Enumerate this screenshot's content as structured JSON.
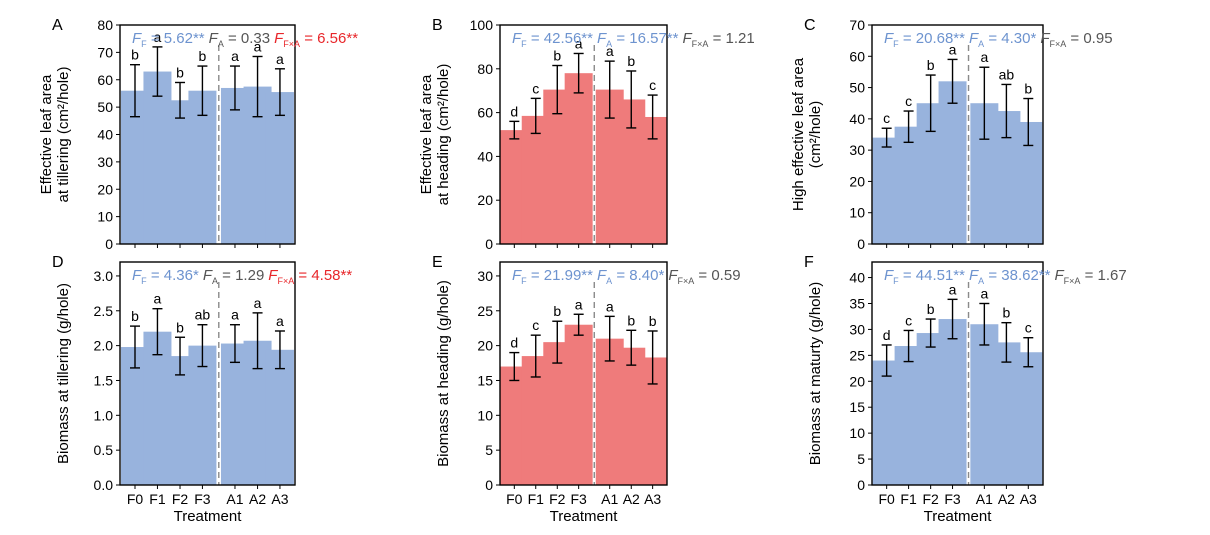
{
  "figure": {
    "xlabel": "Treatment",
    "colors": {
      "blue": "#98b3dd",
      "red": "#ef7b7b",
      "stat_blue": "#6d93cf",
      "stat_red": "#e8262a",
      "stat_gray": "#555555",
      "axis": "#000000",
      "divider": "#8a8a8a"
    }
  },
  "chart_data": [
    {
      "panel": "A",
      "type": "bar",
      "bar_color": "blue",
      "categories": [
        "F0",
        "F1",
        "F2",
        "F3",
        "A1",
        "A2",
        "A3"
      ],
      "values": [
        56,
        63,
        52.5,
        56,
        57,
        57.5,
        55.5
      ],
      "error": [
        9.5,
        9,
        6.5,
        9,
        8,
        11,
        8.5
      ],
      "letters": [
        "b",
        "a",
        "b",
        "b",
        "a",
        "a",
        "a"
      ],
      "ylabel_lines": [
        "Effective leaf area",
        "at tillering (cm²/hole)"
      ],
      "ylim": [
        0,
        80
      ],
      "yticks": [
        "0",
        "10",
        "20",
        "30",
        "40",
        "50",
        "60",
        "70",
        "80"
      ],
      "show_xticklabels": false,
      "show_xlabel": false,
      "stats": [
        {
          "sym": "F",
          "sub": "F",
          "val": " = 5.62**",
          "color": "stat_blue"
        },
        {
          "sym": "F",
          "sub": "A",
          "val": " = 0.33",
          "color": "stat_gray"
        },
        {
          "sym": "F",
          "sub": "F×A",
          "val": " = 6.56**",
          "color": "stat_red"
        }
      ]
    },
    {
      "panel": "B",
      "type": "bar",
      "bar_color": "red",
      "categories": [
        "F0",
        "F1",
        "F2",
        "F3",
        "A1",
        "A2",
        "A3"
      ],
      "values": [
        52,
        58.5,
        70.5,
        78,
        70.5,
        66,
        58
      ],
      "error": [
        4,
        8,
        11,
        9,
        13,
        13,
        10
      ],
      "letters": [
        "d",
        "c",
        "b",
        "a",
        "a",
        "b",
        "c"
      ],
      "ylabel_lines": [
        "Effective leaf area",
        "at heading (cm²/hole)"
      ],
      "ylim": [
        0,
        100
      ],
      "yticks": [
        "0",
        "20",
        "40",
        "60",
        "80",
        "100"
      ],
      "show_xticklabels": false,
      "show_xlabel": false,
      "stats": [
        {
          "sym": "F",
          "sub": "F",
          "val": " = 42.56**",
          "color": "stat_blue"
        },
        {
          "sym": "F",
          "sub": "A",
          "val": " = 16.57**",
          "color": "stat_blue"
        },
        {
          "sym": "F",
          "sub": "F×A",
          "val": " = 1.21",
          "color": "stat_gray"
        }
      ]
    },
    {
      "panel": "C",
      "type": "bar",
      "bar_color": "blue",
      "categories": [
        "F0",
        "F1",
        "F2",
        "F3",
        "A1",
        "A2",
        "A3"
      ],
      "values": [
        34,
        37.5,
        45,
        52,
        45,
        42.5,
        39
      ],
      "error": [
        3,
        5,
        9,
        7,
        11.5,
        8.5,
        7.5
      ],
      "letters": [
        "c",
        "c",
        "b",
        "a",
        "a",
        "ab",
        "b"
      ],
      "ylabel_lines": [
        "High effective leaf area",
        "(cm²/hole)"
      ],
      "ylim": [
        0,
        70
      ],
      "yticks": [
        "0",
        "10",
        "20",
        "30",
        "40",
        "50",
        "60",
        "70"
      ],
      "show_xticklabels": false,
      "show_xlabel": false,
      "stats": [
        {
          "sym": "F",
          "sub": "F",
          "val": " = 20.68**",
          "color": "stat_blue"
        },
        {
          "sym": "F",
          "sub": "A",
          "val": " = 4.30*",
          "color": "stat_blue"
        },
        {
          "sym": "F",
          "sub": "F×A",
          "val": " = 0.95",
          "color": "stat_gray"
        }
      ]
    },
    {
      "panel": "D",
      "type": "bar",
      "bar_color": "blue",
      "categories": [
        "F0",
        "F1",
        "F2",
        "F3",
        "A1",
        "A2",
        "A3"
      ],
      "values": [
        1.98,
        2.2,
        1.85,
        2.0,
        2.03,
        2.07,
        1.94
      ],
      "error": [
        0.3,
        0.33,
        0.27,
        0.3,
        0.27,
        0.4,
        0.27
      ],
      "letters": [
        "b",
        "a",
        "b",
        "ab",
        "a",
        "a",
        "a"
      ],
      "ylabel_lines": [
        "Biomass at tillering (g/hole)"
      ],
      "ylim": [
        0,
        3.2
      ],
      "yticks": [
        "0.0",
        "0.5",
        "1.0",
        "1.5",
        "2.0",
        "2.5",
        "3.0"
      ],
      "show_xticklabels": true,
      "show_xlabel": true,
      "stats": [
        {
          "sym": "F",
          "sub": "F",
          "val": " = 4.36*",
          "color": "stat_blue"
        },
        {
          "sym": "F",
          "sub": "A",
          "val": " = 1.29",
          "color": "stat_gray"
        },
        {
          "sym": "F",
          "sub": "F×A",
          "val": " = 4.58**",
          "color": "stat_red"
        }
      ]
    },
    {
      "panel": "E",
      "type": "bar",
      "bar_color": "red",
      "categories": [
        "F0",
        "F1",
        "F2",
        "F3",
        "A1",
        "A2",
        "A3"
      ],
      "values": [
        17,
        18.5,
        20.5,
        23,
        21,
        19.7,
        18.3
      ],
      "error": [
        2,
        3,
        3,
        1.5,
        3.2,
        2.5,
        3.8
      ],
      "letters": [
        "d",
        "c",
        "b",
        "a",
        "a",
        "b",
        "b"
      ],
      "ylabel_lines": [
        "Biomass at heading (g/hole)"
      ],
      "ylim": [
        0,
        32
      ],
      "yticks": [
        "0",
        "5",
        "10",
        "15",
        "20",
        "25",
        "30"
      ],
      "show_xticklabels": true,
      "show_xlabel": true,
      "stats": [
        {
          "sym": "F",
          "sub": "F",
          "val": " = 21.99**",
          "color": "stat_blue"
        },
        {
          "sym": "F",
          "sub": "A",
          "val": " = 8.40*",
          "color": "stat_blue"
        },
        {
          "sym": "F",
          "sub": "F×A",
          "val": " = 0.59",
          "color": "stat_gray"
        }
      ]
    },
    {
      "panel": "F",
      "type": "bar",
      "bar_color": "blue",
      "categories": [
        "F0",
        "F1",
        "F2",
        "F3",
        "A1",
        "A2",
        "A3"
      ],
      "values": [
        24,
        26.8,
        29.3,
        32,
        31,
        27.5,
        25.6
      ],
      "error": [
        3,
        3,
        2.7,
        3.8,
        4,
        3.8,
        2.8
      ],
      "letters": [
        "d",
        "c",
        "b",
        "a",
        "a",
        "b",
        "c"
      ],
      "ylabel_lines": [
        "Biomass at maturty (g/hole)"
      ],
      "ylim": [
        0,
        43
      ],
      "yticks": [
        "0",
        "5",
        "10",
        "15",
        "20",
        "25",
        "30",
        "35",
        "40"
      ],
      "show_xticklabels": true,
      "show_xlabel": true,
      "stats": [
        {
          "sym": "F",
          "sub": "F",
          "val": " = 44.51**",
          "color": "stat_blue"
        },
        {
          "sym": "F",
          "sub": "A",
          "val": " = 38.62**",
          "color": "stat_blue"
        },
        {
          "sym": "F",
          "sub": "F×A",
          "val": " = 1.67",
          "color": "stat_gray"
        }
      ]
    }
  ]
}
